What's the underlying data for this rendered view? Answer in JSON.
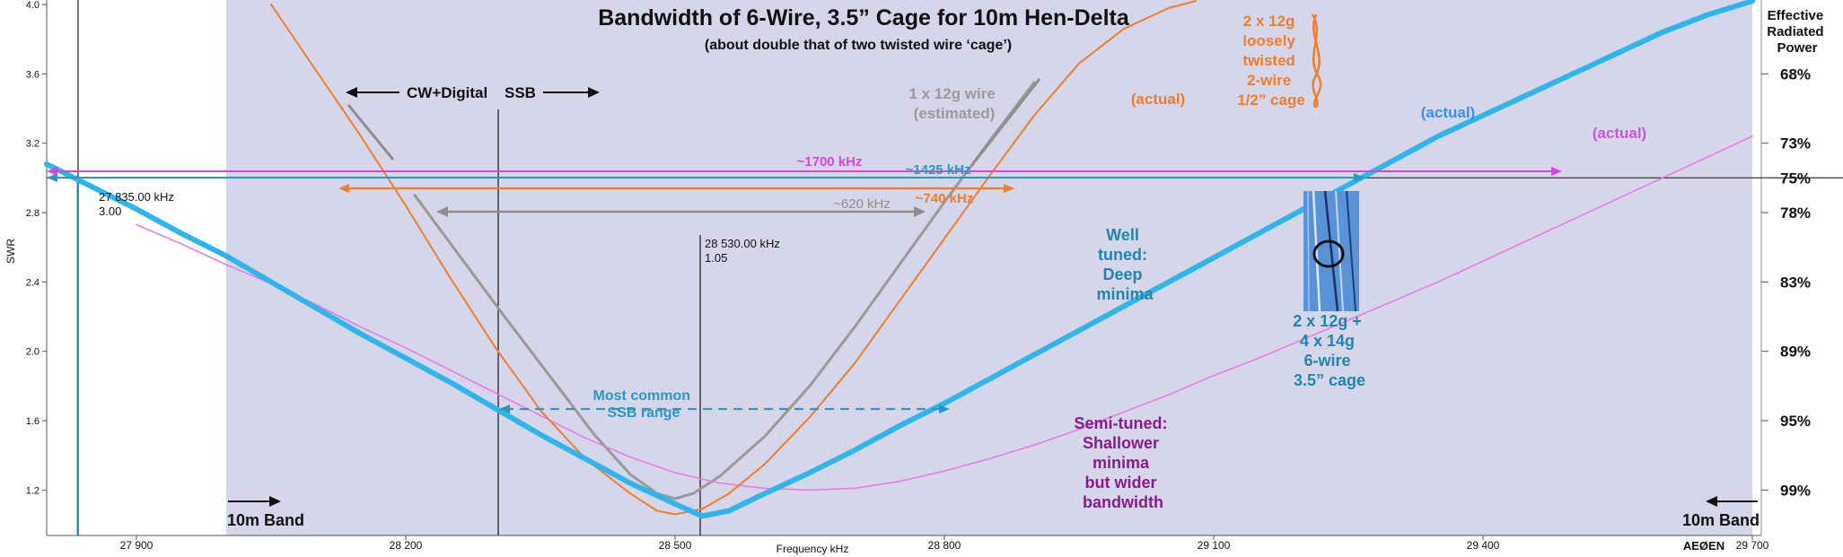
{
  "chart_data": {
    "type": "line",
    "title": "Bandwidth of 6-Wire, 3.5” Cage for 10m Hen-Delta",
    "subtitle": "(about double that of two twisted wire ‘cage’)",
    "xlabel": "Frequency kHz",
    "ylabel": "SWR",
    "xlim": [
      27800,
      29710
    ],
    "ylim": [
      1.0,
      4.0
    ],
    "grid": false,
    "x_ticks": [
      {
        "value": 27900,
        "label": "27 900"
      },
      {
        "value": 28200,
        "label": "28 200"
      },
      {
        "value": 28500,
        "label": "28 500"
      },
      {
        "value": 28800,
        "label": "28 800"
      },
      {
        "value": 29100,
        "label": "29 100"
      },
      {
        "value": 29400,
        "label": "29 400"
      },
      {
        "value": 29700,
        "label": "29 700"
      }
    ],
    "y_ticks": [
      {
        "value": 4.0,
        "label": "4.0"
      },
      {
        "value": 3.6,
        "label": "3.6"
      },
      {
        "value": 3.2,
        "label": "3.2"
      },
      {
        "value": 2.8,
        "label": "2.8"
      },
      {
        "value": 2.4,
        "label": "2.4"
      },
      {
        "value": 2.0,
        "label": "2.0"
      },
      {
        "value": 1.6,
        "label": "1.6"
      },
      {
        "value": 1.2,
        "label": "1.2"
      }
    ],
    "right_axis": {
      "title_lines": [
        "Effective",
        "Radiated",
        "Power"
      ],
      "ticks": [
        {
          "swr": 3.6,
          "label": "68%"
        },
        {
          "swr": 3.2,
          "label": "73%"
        },
        {
          "swr": 3.0,
          "label": "75%"
        },
        {
          "swr": 2.8,
          "label": "78%"
        },
        {
          "swr": 2.4,
          "label": "83%"
        },
        {
          "swr": 2.0,
          "label": "89%"
        },
        {
          "swr": 1.6,
          "label": "95%"
        },
        {
          "swr": 1.2,
          "label": "99%"
        }
      ]
    },
    "band_shading": {
      "x_start": 28000,
      "x_end": 29700,
      "color": "#d6d6ea"
    },
    "reference_line": {
      "swr": 3.0
    },
    "series": [
      {
        "color": "#2fb5ec",
        "x": [
          27800,
          27850,
          27900,
          27950,
          28000,
          28050,
          28100,
          28150,
          28200,
          28250,
          28300,
          28350,
          28400,
          28450,
          28500,
          28530,
          28560,
          28600,
          28650,
          28700,
          28750,
          28800,
          28850,
          28900,
          28950,
          29000,
          29050,
          29100,
          29150,
          29200,
          29250,
          29300,
          29350,
          29400,
          29450,
          29500,
          29550,
          29600,
          29650,
          29700
        ],
        "y": [
          3.08,
          2.95,
          2.82,
          2.68,
          2.55,
          2.4,
          2.25,
          2.1,
          1.96,
          1.82,
          1.67,
          1.52,
          1.38,
          1.24,
          1.12,
          1.05,
          1.08,
          1.18,
          1.3,
          1.43,
          1.57,
          1.7,
          1.84,
          1.98,
          2.12,
          2.26,
          2.4,
          2.54,
          2.68,
          2.82,
          2.96,
          3.1,
          3.24,
          3.36,
          3.48,
          3.6,
          3.72,
          3.84,
          3.94,
          4.02
        ]
      },
      {
        "color": "#e879e8",
        "x": [
          27900,
          27950,
          28000,
          28050,
          28100,
          28150,
          28200,
          28250,
          28300,
          28350,
          28400,
          28450,
          28500,
          28550,
          28600,
          28650,
          28700,
          28750,
          28800,
          28850,
          28900,
          28950,
          29000,
          29050,
          29100,
          29150,
          29200,
          29250,
          29300,
          29350,
          29400,
          29450,
          29500,
          29550,
          29600,
          29650,
          29700
        ],
        "y": [
          2.73,
          2.62,
          2.5,
          2.39,
          2.27,
          2.14,
          2.02,
          1.89,
          1.76,
          1.63,
          1.5,
          1.39,
          1.3,
          1.24,
          1.21,
          1.2,
          1.21,
          1.25,
          1.31,
          1.38,
          1.46,
          1.55,
          1.65,
          1.75,
          1.86,
          1.96,
          2.07,
          2.18,
          2.29,
          2.4,
          2.52,
          2.64,
          2.76,
          2.88,
          3.0,
          3.12,
          3.24
        ]
      },
      {
        "color": "#ee7d2d",
        "x": [
          28050,
          28100,
          28150,
          28200,
          28250,
          28300,
          28350,
          28400,
          28450,
          28480,
          28500,
          28530,
          28560,
          28600,
          28650,
          28700,
          28750,
          28800,
          28850,
          28900,
          28950,
          29000,
          29050,
          29080
        ],
        "y": [
          4.0,
          3.62,
          3.24,
          2.84,
          2.42,
          2.02,
          1.66,
          1.38,
          1.18,
          1.08,
          1.06,
          1.09,
          1.18,
          1.35,
          1.62,
          1.93,
          2.29,
          2.65,
          3.01,
          3.36,
          3.66,
          3.86,
          3.98,
          4.02
        ]
      },
      {
        "color": "#999999",
        "x": [
          28210,
          28260,
          28310,
          28360,
          28410,
          28450,
          28480,
          28500,
          28520,
          28550,
          28600,
          28650,
          28700,
          28750,
          28800,
          28850,
          28900
        ],
        "y": [
          2.9,
          2.55,
          2.2,
          1.86,
          1.52,
          1.29,
          1.18,
          1.15,
          1.18,
          1.28,
          1.51,
          1.8,
          2.14,
          2.5,
          2.86,
          3.21,
          3.55
        ]
      }
    ],
    "annotations": {
      "cw_digital": "CW+Digital",
      "ssb": "SSB",
      "band_left": "10m Band",
      "band_right": "10m Band",
      "gray_label_lines": [
        "1 x 12g wire",
        "(estimated)"
      ],
      "orange_actual": "(actual)",
      "orange_label_lines": [
        "2 x 12g",
        "loosely",
        "twisted",
        "2-wire",
        "1/2” cage"
      ],
      "blue_actual": "(actual)",
      "pink_actual": "(actual)",
      "bw_pink": "~1700 kHz",
      "bw_blue": "~1425 kHz",
      "bw_orange": "~740 kHz",
      "bw_gray": "~620 kHz",
      "marker_left_freq": "27 835.00 kHz",
      "marker_left_swr": "3.00",
      "marker_min_freq": "28 530.00 kHz",
      "marker_min_swr": "1.05",
      "ssb_range_lines": [
        "Most common",
        "SSB range"
      ],
      "well_tuned_lines": [
        "Well",
        "tuned:",
        "Deep",
        "minima"
      ],
      "semi_tuned_lines": [
        "Semi-tuned:",
        "Shallower",
        "minima",
        "but wider",
        "bandwidth"
      ],
      "cage_label_lines": [
        "2 x 12g +",
        "4 x 14g",
        "6-wire",
        "3.5” cage"
      ],
      "watermark": "AEØEN"
    }
  }
}
